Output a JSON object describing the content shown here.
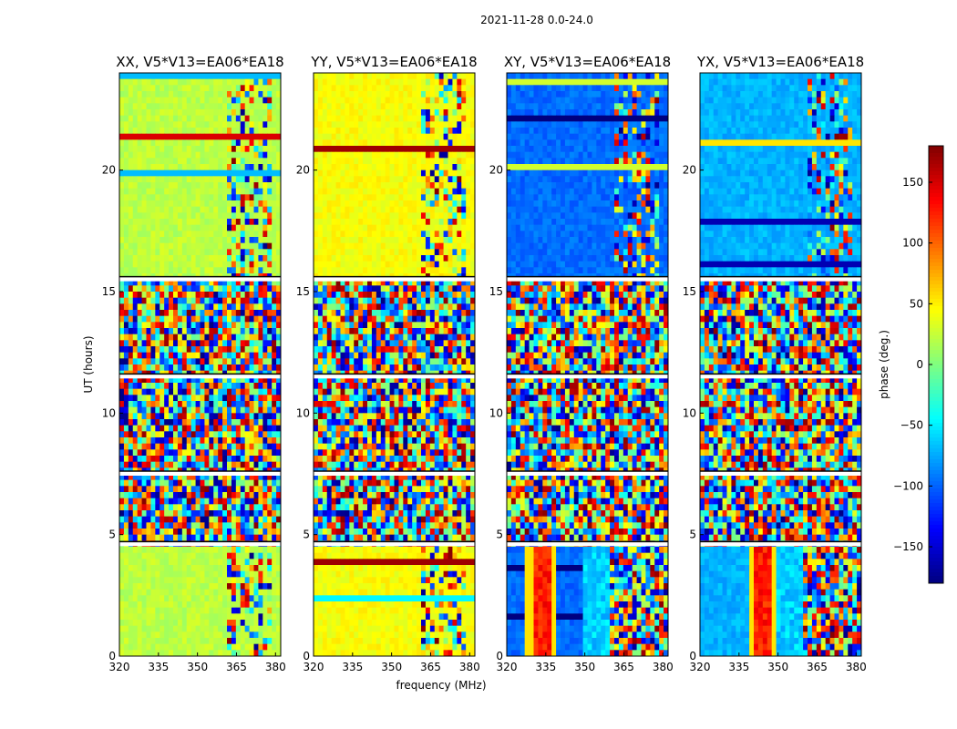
{
  "chart_data": {
    "type": "heatmap",
    "suptitle": "2021-11-28 0.0-24.0",
    "xlabel": "frequency (MHz)",
    "ylabel": "UT (hours)",
    "xlim": [
      320,
      382
    ],
    "ylim": [
      0,
      24
    ],
    "xticks": [
      320,
      335,
      350,
      365,
      380
    ],
    "yticks": [
      0,
      5,
      10,
      15,
      20
    ],
    "panels": [
      {
        "title": "XX, V5*V13=EA06*EA18",
        "baseline": "green"
      },
      {
        "title": "YY, V5*V13=EA06*EA18",
        "baseline": "yellow-green"
      },
      {
        "title": "XY, V5*V13=EA06*EA18",
        "baseline": "blue"
      },
      {
        "title": "YX, V5*V13=EA06*EA18",
        "baseline": "cyan-blue"
      }
    ],
    "colorbar": {
      "label": "phase (deg.)",
      "cmap": "jet",
      "range": [
        -180,
        180
      ],
      "ticks": [
        -150,
        -100,
        -50,
        0,
        50,
        100,
        150
      ]
    },
    "segments_ut": [
      {
        "from": 0,
        "to": 4.6,
        "character": "smooth with interference"
      },
      {
        "from": 4.6,
        "to": 7.5,
        "character": "noisy"
      },
      {
        "from": 7.5,
        "to": 11.5,
        "character": "noisy"
      },
      {
        "from": 11.5,
        "to": 15.5,
        "character": "noisy"
      },
      {
        "from": 15.5,
        "to": 24,
        "character": "smooth with interference"
      }
    ],
    "gap_lines_ut": [
      4.6,
      7.5,
      11.5,
      15.5
    ]
  }
}
